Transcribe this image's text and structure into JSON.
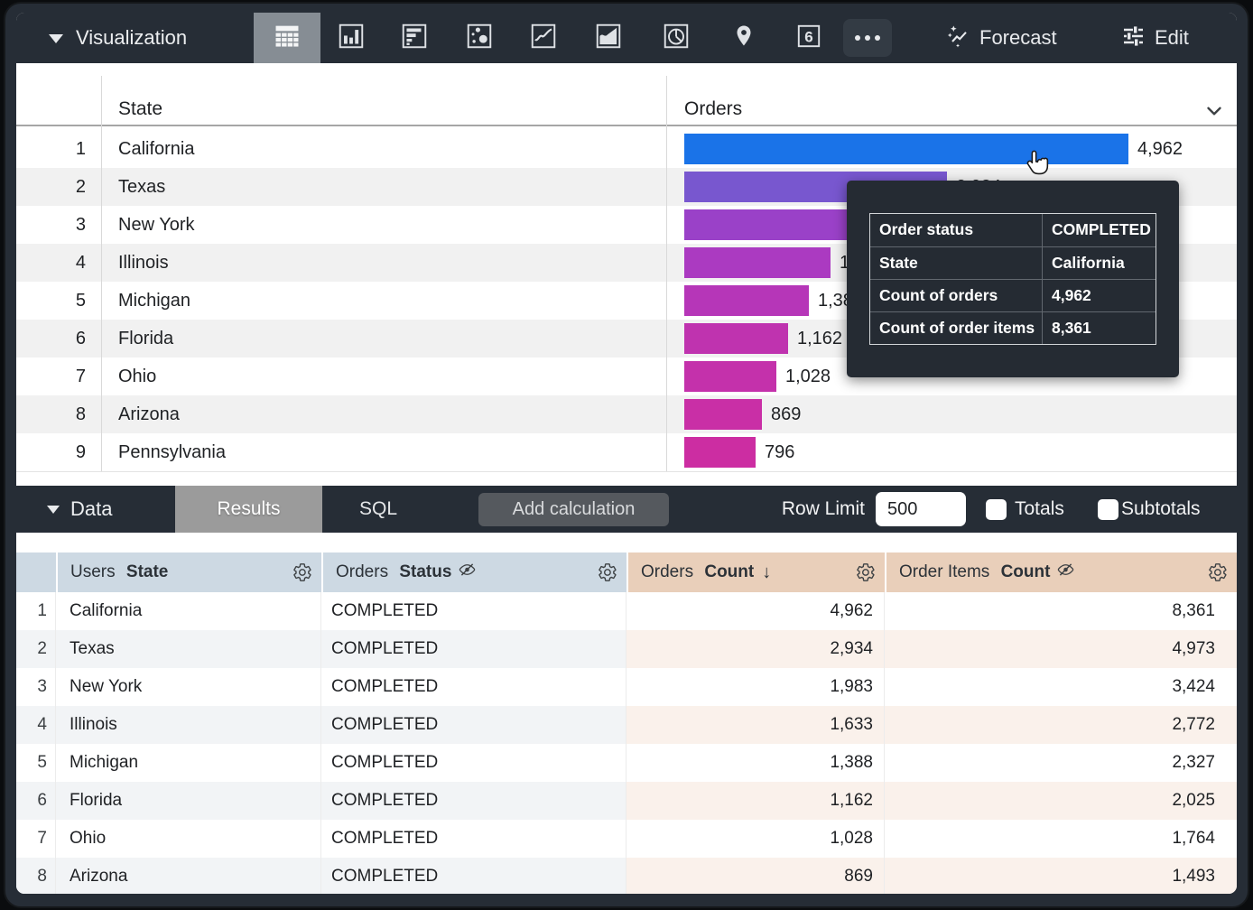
{
  "toolbar": {
    "visualization_label": "Visualization",
    "forecast_label": "Forecast",
    "edit_label": "Edit",
    "icons": [
      {
        "name": "table-chart",
        "selected": true
      },
      {
        "name": "column-chart",
        "selected": false
      },
      {
        "name": "bar-chart",
        "selected": false
      },
      {
        "name": "scatter-chart",
        "selected": false
      },
      {
        "name": "line-chart",
        "selected": false
      },
      {
        "name": "area-chart",
        "selected": false
      },
      {
        "name": "pie-chart",
        "selected": false
      },
      {
        "name": "map-pin",
        "selected": false
      },
      {
        "name": "single-value",
        "selected": false
      },
      {
        "name": "more-options",
        "selected": false
      }
    ]
  },
  "chart_data": {
    "type": "bar",
    "orientation": "horizontal",
    "series_label": "Orders",
    "categories": [
      "California",
      "Texas",
      "New York",
      "Illinois",
      "Michigan",
      "Florida",
      "Ohio",
      "Arizona",
      "Pennsylvania"
    ],
    "values": [
      4962,
      2934,
      1983,
      1633,
      1388,
      1162,
      1028,
      869,
      796
    ],
    "value_labels": [
      "4,962",
      "2,934",
      "1,983",
      "1,633",
      "1,388",
      "1,162",
      "1,028",
      "869",
      "796"
    ],
    "bar_colors": [
      "#1a73e8",
      "#7857cf",
      "#9a41c8",
      "#ab3ac1",
      "#b636b8",
      "#bf33af",
      "#c431ab",
      "#c92fa6",
      "#cc2da2"
    ],
    "scale_max": 4962,
    "legend": "none",
    "grid": false
  },
  "viz_table": {
    "state_header": "State",
    "orders_header": "Orders",
    "rows": [
      {
        "num": "1",
        "state": "California",
        "value": 4962,
        "label": "4,962",
        "color": "#1a73e8"
      },
      {
        "num": "2",
        "state": "Texas",
        "value": 2934,
        "label": "2,934",
        "color": "#7857cf"
      },
      {
        "num": "3",
        "state": "New York",
        "value": 1983,
        "label": "1,983",
        "color": "#9a41c8"
      },
      {
        "num": "4",
        "state": "Illinois",
        "value": 1633,
        "label": "1,633",
        "color": "#ab3ac1"
      },
      {
        "num": "5",
        "state": "Michigan",
        "value": 1388,
        "label": "1,388",
        "color": "#b636b8"
      },
      {
        "num": "6",
        "state": "Florida",
        "value": 1162,
        "label": "1,162",
        "color": "#bf33af"
      },
      {
        "num": "7",
        "state": "Ohio",
        "value": 1028,
        "label": "1,028",
        "color": "#c431ab"
      },
      {
        "num": "8",
        "state": "Arizona",
        "value": 869,
        "label": "869",
        "color": "#c92fa6"
      },
      {
        "num": "9",
        "state": "Pennsylvania",
        "value": 796,
        "label": "796",
        "color": "#cc2da2"
      }
    ]
  },
  "tooltip": {
    "rows": [
      {
        "label": "Order status",
        "value": "COMPLETED"
      },
      {
        "label": "State",
        "value": "California"
      },
      {
        "label": "Count of orders",
        "value": "4,962"
      },
      {
        "label": "Count of order items",
        "value": "8,361"
      }
    ]
  },
  "data_bar": {
    "data_label": "Data",
    "results_tab": "Results",
    "sql_tab": "SQL",
    "add_calculation_label": "Add calculation",
    "row_limit_label": "Row Limit",
    "row_limit_value": "500",
    "totals_label": "Totals",
    "subtotals_label": "Subtotals"
  },
  "data_table": {
    "headers": [
      {
        "prefix": "Users ",
        "field": "State"
      },
      {
        "prefix": "Orders ",
        "field": "Status"
      },
      {
        "prefix": "Orders ",
        "field": "Count"
      },
      {
        "prefix": "Order Items ",
        "field": "Count"
      }
    ],
    "sort_arrow": "↓",
    "rows": [
      [
        "1",
        "California",
        "COMPLETED",
        "4,962",
        "8,361"
      ],
      [
        "2",
        "Texas",
        "COMPLETED",
        "2,934",
        "4,973"
      ],
      [
        "3",
        "New York",
        "COMPLETED",
        "1,983",
        "3,424"
      ],
      [
        "4",
        "Illinois",
        "COMPLETED",
        "1,633",
        "2,772"
      ],
      [
        "5",
        "Michigan",
        "COMPLETED",
        "1,388",
        "2,327"
      ],
      [
        "6",
        "Florida",
        "COMPLETED",
        "1,162",
        "2,025"
      ],
      [
        "7",
        "Ohio",
        "COMPLETED",
        "1,028",
        "1,764"
      ],
      [
        "8",
        "Arizona",
        "COMPLETED",
        "869",
        "1,493"
      ]
    ]
  },
  "colors": {
    "toolbar_bg": "#262d36",
    "selected_icon_bg": "#868d94",
    "results_tab_bg": "#9b9b9b",
    "add_calc_bg": "#55595e",
    "dimension_header_bg": "#cdd9e3",
    "measure_header_bg": "#e9cfba",
    "dimension_alt_row_bg": "#f2f4f6",
    "measure_alt_row_bg": "#faf1eb",
    "viz_alt_row_bg": "#f1f1f1",
    "tooltip_bg": "#252b33",
    "bar_color_start": "#1a73e8",
    "bar_color_end": "#cc2da2"
  }
}
